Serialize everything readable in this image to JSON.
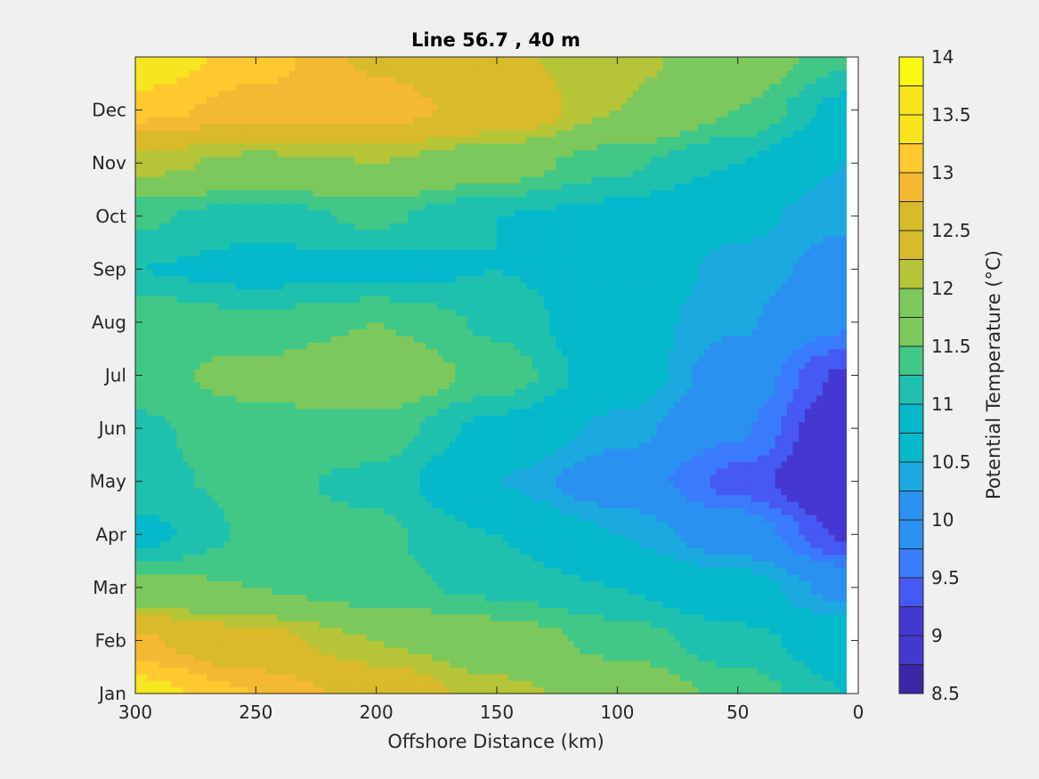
{
  "chart_data": {
    "type": "heatmap",
    "subtype": "filled-contour",
    "title": "Line 56.7 , 40 m",
    "xlabel": "Offshore Distance (km)",
    "ylabel": "",
    "colorbar_label": "Potential Temperature (°C)",
    "xlim": [
      300,
      0
    ],
    "x_direction": "reversed",
    "data_x_range": [
      300,
      5
    ],
    "x_ticks": [
      300,
      250,
      200,
      150,
      100,
      50,
      0
    ],
    "x_tick_labels": [
      "300",
      "250",
      "200",
      "150",
      "100",
      "50",
      "0"
    ],
    "y_ticks": [
      1,
      2,
      3,
      4,
      5,
      6,
      7,
      8,
      9,
      10,
      11,
      12
    ],
    "y_tick_labels": [
      "Jan",
      "Feb",
      "Mar",
      "Apr",
      "May",
      "Jun",
      "Jul",
      "Aug",
      "Sep",
      "Oct",
      "Nov",
      "Dec"
    ],
    "ylim": [
      1,
      13
    ],
    "clim": [
      8.5,
      14
    ],
    "contour_levels": [
      8.5,
      8.75,
      9,
      9.25,
      9.5,
      9.75,
      10,
      10.25,
      10.5,
      10.75,
      11,
      11.25,
      11.5,
      11.75,
      12,
      12.25,
      12.5,
      12.75,
      13,
      13.25,
      13.5,
      13.75,
      14
    ],
    "colorbar_ticks": [
      14,
      13.5,
      13,
      12.5,
      12,
      11.5,
      11,
      10.5,
      10,
      9.5,
      9,
      8.5
    ],
    "colorbar_tick_labels": [
      "14",
      "13.5",
      "13",
      "12.5",
      "12",
      "11.5",
      "11",
      "10.5",
      "10",
      "9.5",
      "9",
      "8.5"
    ],
    "colormap": [
      "#3e26a8",
      "#4537d1",
      "#4659f2",
      "#3a7bfd",
      "#2a91f0",
      "#1ca9df",
      "#05b9cb",
      "#1fc1ae",
      "#41c786",
      "#7cc85c",
      "#b6c437",
      "#d9ba2a",
      "#f4b832",
      "#fdc92f",
      "#f7e51f",
      "#f9fb0e"
    ],
    "grid": false,
    "legend": "none",
    "x": [
      300,
      250,
      200,
      150,
      100,
      50,
      5
    ],
    "y": [
      1,
      2,
      3,
      4,
      5,
      6,
      7,
      8,
      9,
      10,
      11,
      12,
      13
    ],
    "z": [
      [
        13.4,
        13.0,
        12.6,
        12.1,
        11.8,
        11.4,
        11.0
      ],
      [
        12.8,
        12.4,
        12.0,
        11.7,
        11.4,
        11.1,
        10.8
      ],
      [
        11.6,
        11.5,
        11.3,
        11.2,
        11.0,
        10.7,
        10.1
      ],
      [
        10.9,
        11.3,
        11.3,
        11.0,
        10.5,
        10.0,
        9.2
      ],
      [
        11.2,
        11.3,
        11.2,
        10.5,
        10.0,
        9.4,
        8.8
      ],
      [
        11.2,
        11.4,
        11.4,
        10.9,
        10.4,
        9.8,
        8.9
      ],
      [
        11.4,
        11.6,
        11.8,
        11.4,
        10.8,
        10.0,
        9.2
      ],
      [
        11.5,
        11.3,
        11.5,
        11.2,
        10.7,
        10.3,
        9.8
      ],
      [
        11.0,
        10.9,
        10.9,
        11.0,
        10.8,
        10.4,
        10.1
      ],
      [
        11.3,
        11.1,
        11.3,
        11.0,
        10.9,
        10.6,
        10.3
      ],
      [
        12.1,
        11.9,
        12.0,
        11.7,
        11.3,
        11.0,
        10.5
      ],
      [
        13.1,
        12.9,
        12.9,
        12.6,
        12.0,
        11.5,
        10.9
      ],
      [
        13.5,
        13.1,
        12.7,
        12.3,
        12.1,
        11.8,
        11.3
      ]
    ]
  }
}
